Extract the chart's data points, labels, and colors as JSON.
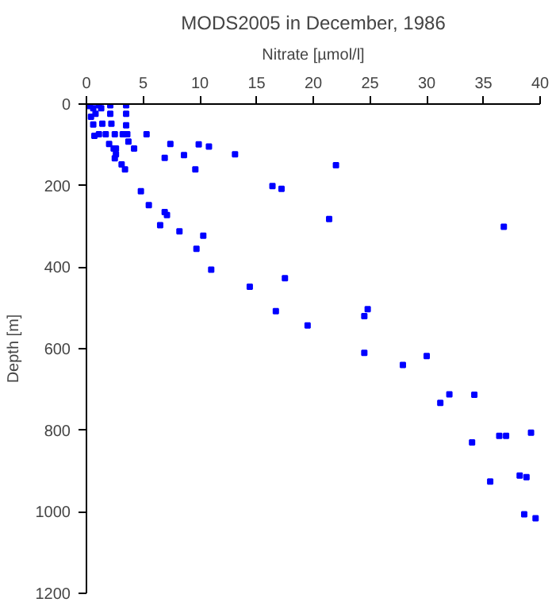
{
  "chart_data": {
    "type": "scatter",
    "title": "MODS2005 in December, 1986",
    "xlabel": "Nitrate [µmol/l]",
    "ylabel": "Depth [m]",
    "marker": "square",
    "grid": false,
    "xlim": [
      0,
      40
    ],
    "xticks": [
      0,
      5,
      10,
      15,
      20,
      25,
      30,
      35,
      40
    ],
    "ylim": [
      1200,
      0
    ],
    "yticks": [
      0,
      200,
      400,
      600,
      800,
      1000,
      1200
    ],
    "series": [
      {
        "color": "#0000ff",
        "x": [
          0.3,
          0.6,
          1.1,
          1.3,
          0.4,
          0.8,
          0.6,
          1.4,
          2.1,
          2.1,
          2.2,
          3.5,
          3.5,
          3.5,
          0.7,
          1.1,
          1.7,
          2.5,
          3.2,
          3.6,
          5.3,
          2.0,
          2.4,
          2.6,
          2.6,
          2.5,
          3.1,
          3.4,
          3.7,
          4.2,
          7.4,
          6.9,
          8.6,
          9.6,
          9.9,
          10.8,
          13.1,
          4.8,
          5.5,
          6.9,
          7.1,
          6.5,
          8.2,
          10.3,
          9.7,
          11.0,
          22.0,
          16.4,
          17.2,
          21.4,
          36.8,
          14.4,
          17.5,
          16.7,
          19.5,
          24.8,
          24.5,
          24.5,
          27.9,
          30.0,
          32.0,
          34.2,
          31.2,
          34.0,
          36.4,
          37.0,
          39.2,
          35.6,
          38.2,
          38.8,
          38.6,
          39.6
        ],
        "values": [
          5,
          10,
          3,
          10,
          31,
          24,
          50,
          48,
          3,
          24,
          48,
          3,
          24,
          52,
          78,
          74,
          74,
          74,
          74,
          74,
          74,
          98,
          109,
          109,
          123,
          133,
          148,
          160,
          92,
          109,
          98,
          132,
          125,
          160,
          99,
          104,
          123,
          214,
          248,
          265,
          272,
          297,
          312,
          323,
          355,
          406,
          150,
          201,
          208,
          282,
          301,
          448,
          427,
          508,
          543,
          503,
          520,
          610,
          640,
          618,
          712,
          713,
          733,
          830,
          814,
          814,
          806,
          926,
          911,
          915,
          1006,
          1016
        ]
      }
    ]
  }
}
